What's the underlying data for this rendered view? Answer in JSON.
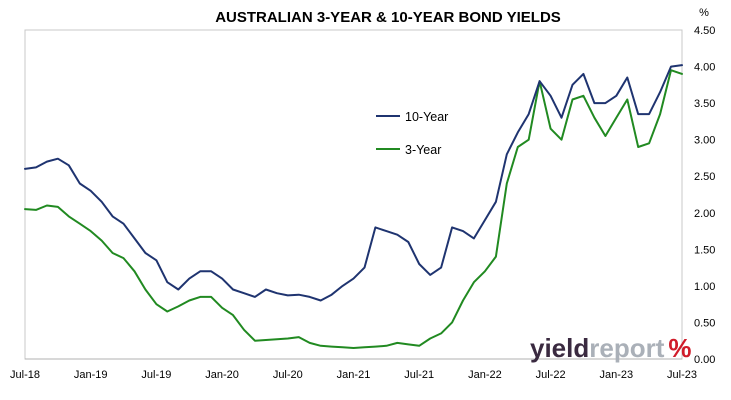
{
  "chart_data": {
    "type": "line",
    "title": "AUSTRALIAN 3-YEAR & 10-YEAR BOND YIELDS",
    "y_unit_label": "%",
    "x_ticks": [
      "Jul-18",
      "Jan-19",
      "Jul-19",
      "Jan-20",
      "Jul-20",
      "Jan-21",
      "Jul-21",
      "Jan-22",
      "Jul-22",
      "Jan-23",
      "Jul-23"
    ],
    "y_ticks": [
      "0.00",
      "0.50",
      "1.00",
      "1.50",
      "2.00",
      "2.50",
      "3.00",
      "3.50",
      "4.00",
      "4.50"
    ],
    "ylim": [
      0,
      4.5
    ],
    "x_range": [
      "2018-07",
      "2023-07"
    ],
    "grid": false,
    "legend_position": "center",
    "series": [
      {
        "name": "10-Year",
        "color": "#1f3470",
        "x": [
          "2018-07",
          "2018-08",
          "2018-09",
          "2018-10",
          "2018-11",
          "2018-12",
          "2019-01",
          "2019-02",
          "2019-03",
          "2019-04",
          "2019-05",
          "2019-06",
          "2019-07",
          "2019-08",
          "2019-09",
          "2019-10",
          "2019-11",
          "2019-12",
          "2020-01",
          "2020-02",
          "2020-03",
          "2020-04",
          "2020-05",
          "2020-06",
          "2020-07",
          "2020-08",
          "2020-09",
          "2020-10",
          "2020-11",
          "2020-12",
          "2021-01",
          "2021-02",
          "2021-03",
          "2021-04",
          "2021-05",
          "2021-06",
          "2021-07",
          "2021-08",
          "2021-09",
          "2021-10",
          "2021-11",
          "2021-12",
          "2022-01",
          "2022-02",
          "2022-03",
          "2022-04",
          "2022-05",
          "2022-06",
          "2022-07",
          "2022-08",
          "2022-09",
          "2022-10",
          "2022-11",
          "2022-12",
          "2023-01",
          "2023-02",
          "2023-03",
          "2023-04",
          "2023-05",
          "2023-06",
          "2023-07"
        ],
        "values": [
          2.6,
          2.62,
          2.7,
          2.74,
          2.65,
          2.4,
          2.3,
          2.15,
          1.95,
          1.85,
          1.65,
          1.45,
          1.35,
          1.05,
          0.95,
          1.1,
          1.2,
          1.2,
          1.1,
          0.95,
          0.9,
          0.85,
          0.95,
          0.9,
          0.87,
          0.88,
          0.85,
          0.8,
          0.88,
          1.0,
          1.1,
          1.25,
          1.8,
          1.75,
          1.7,
          1.6,
          1.3,
          1.15,
          1.25,
          1.8,
          1.75,
          1.65,
          1.9,
          2.15,
          2.8,
          3.1,
          3.35,
          3.8,
          3.6,
          3.3,
          3.75,
          3.9,
          3.5,
          3.5,
          3.6,
          3.85,
          3.35,
          3.35,
          3.65,
          4.0,
          4.02
        ]
      },
      {
        "name": "3-Year",
        "color": "#218a21",
        "x": [
          "2018-07",
          "2018-08",
          "2018-09",
          "2018-10",
          "2018-11",
          "2018-12",
          "2019-01",
          "2019-02",
          "2019-03",
          "2019-04",
          "2019-05",
          "2019-06",
          "2019-07",
          "2019-08",
          "2019-09",
          "2019-10",
          "2019-11",
          "2019-12",
          "2020-01",
          "2020-02",
          "2020-03",
          "2020-04",
          "2020-05",
          "2020-06",
          "2020-07",
          "2020-08",
          "2020-09",
          "2020-10",
          "2020-11",
          "2020-12",
          "2021-01",
          "2021-02",
          "2021-03",
          "2021-04",
          "2021-05",
          "2021-06",
          "2021-07",
          "2021-08",
          "2021-09",
          "2021-10",
          "2021-11",
          "2021-12",
          "2022-01",
          "2022-02",
          "2022-03",
          "2022-04",
          "2022-05",
          "2022-06",
          "2022-07",
          "2022-08",
          "2022-09",
          "2022-10",
          "2022-11",
          "2022-12",
          "2023-01",
          "2023-02",
          "2023-03",
          "2023-04",
          "2023-05",
          "2023-06",
          "2023-07"
        ],
        "values": [
          2.05,
          2.04,
          2.1,
          2.08,
          1.95,
          1.85,
          1.75,
          1.62,
          1.45,
          1.38,
          1.2,
          0.95,
          0.75,
          0.65,
          0.72,
          0.8,
          0.85,
          0.85,
          0.7,
          0.6,
          0.4,
          0.25,
          0.26,
          0.27,
          0.28,
          0.3,
          0.22,
          0.18,
          0.17,
          0.16,
          0.15,
          0.16,
          0.17,
          0.18,
          0.22,
          0.2,
          0.18,
          0.28,
          0.35,
          0.5,
          0.8,
          1.05,
          1.2,
          1.4,
          2.4,
          2.9,
          3.0,
          3.8,
          3.15,
          3.0,
          3.55,
          3.6,
          3.3,
          3.05,
          3.3,
          3.55,
          2.9,
          2.95,
          3.35,
          3.95,
          3.9
        ]
      }
    ]
  },
  "branding": {
    "part1": "yield",
    "part2": "report",
    "symbol": "%",
    "color_dark": "#3a2a40",
    "color_light": "#aab0b8",
    "color_accent": "#d01c2a"
  }
}
